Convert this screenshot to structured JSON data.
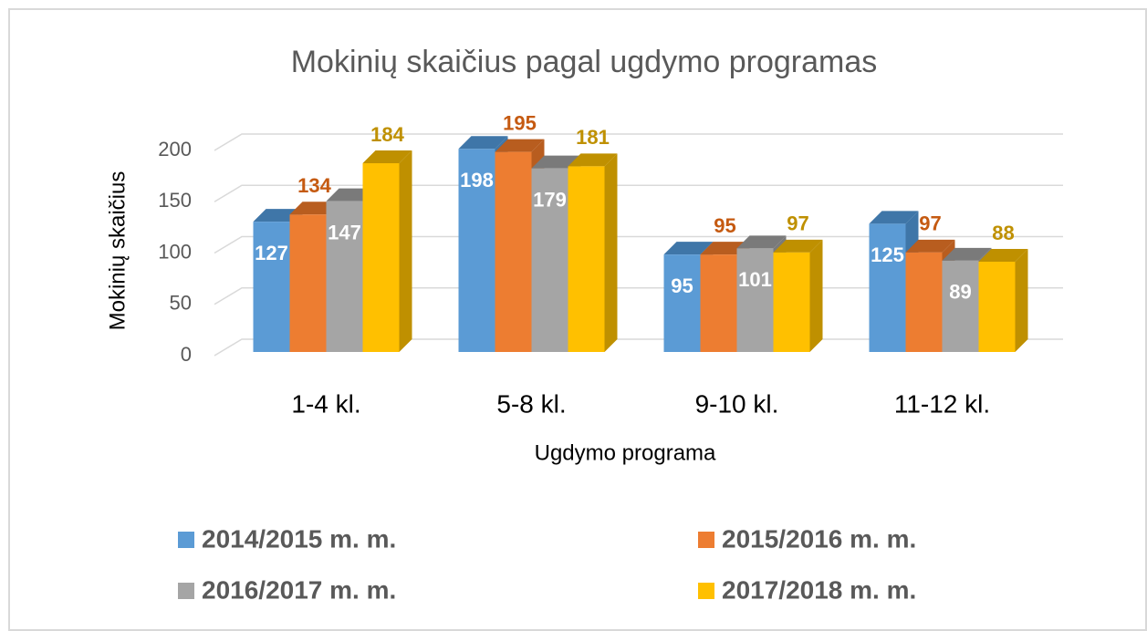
{
  "chart_data": {
    "type": "bar3d",
    "title": "Mokinių skaičius pagal ugdymo programas",
    "y_label": "Mokinių skaičius",
    "x_label": "Ugdymo programa",
    "categories": [
      "1-4 kl.",
      "5-8 kl.",
      "9-10 kl.",
      "11-12 kl."
    ],
    "series": [
      {
        "name": "2014/2015 m. m.",
        "color": "#5b9bd5",
        "side": "#3f76a8",
        "label_color": "#ffffff",
        "label_position": "inside",
        "values": [
          127,
          198,
          95,
          125
        ]
      },
      {
        "name": "2015/2016 m. m.",
        "color": "#ed7d31",
        "side": "#b85d1f",
        "label_color": "#c55a11",
        "label_position": "outside",
        "values": [
          134,
          195,
          95,
          97
        ]
      },
      {
        "name": "2016/2017 m. m.",
        "color": "#a5a5a5",
        "side": "#7a7a7a",
        "label_color": "#ffffff",
        "label_position": "inside",
        "values": [
          147,
          179,
          101,
          89
        ]
      },
      {
        "name": "2017/2018 m. m.",
        "color": "#ffc000",
        "side": "#bf9000",
        "label_color": "#bf9000",
        "label_position": "outside",
        "values": [
          184,
          181,
          97,
          88
        ]
      }
    ],
    "ylim": [
      0,
      200
    ],
    "yticks": [
      0,
      50,
      100,
      150,
      200
    ],
    "grid": true,
    "legend": "bottom"
  }
}
